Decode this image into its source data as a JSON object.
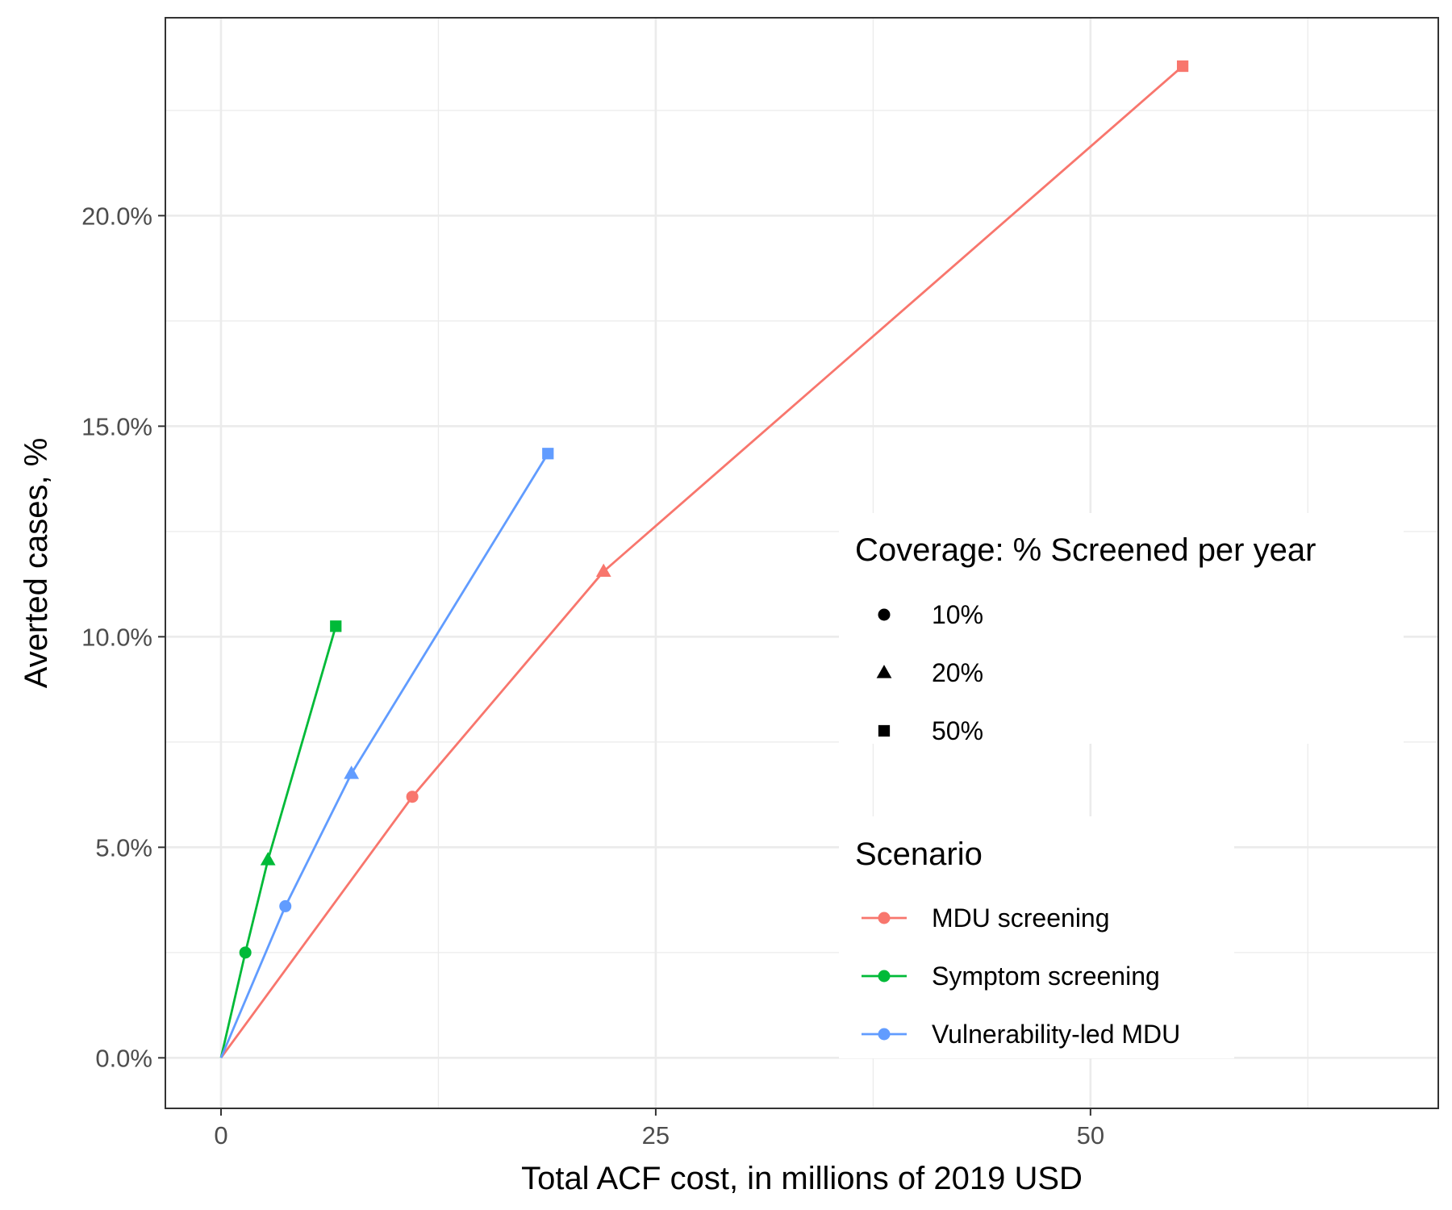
{
  "chart_data": {
    "type": "line",
    "title": "",
    "xlabel": "Total ACF cost, in millions of 2019 USD",
    "ylabel": "Averted cases, %",
    "xlim": [
      -3.2,
      70
    ],
    "ylim": [
      -1.2,
      24.7
    ],
    "x_ticks": [
      0,
      25,
      50
    ],
    "x_tick_labels": [
      "0",
      "25",
      "50"
    ],
    "x_minor_ticks": [
      12.5,
      37.5,
      62.5
    ],
    "y_ticks": [
      0,
      5,
      10,
      15,
      20
    ],
    "y_tick_labels": [
      "0.0%",
      "5.0%",
      "10.0%",
      "15.0%",
      "20.0%"
    ],
    "y_minor_ticks": [
      2.5,
      7.5,
      12.5,
      17.5,
      22.5
    ],
    "grid": true,
    "legend_position": "right-inside",
    "series": [
      {
        "name": "MDU screening",
        "color": "#F8766D",
        "points": [
          {
            "x": 0,
            "y": 0,
            "shape": "none"
          },
          {
            "x": 11,
            "y": 6.2,
            "shape": "circle"
          },
          {
            "x": 22,
            "y": 11.55,
            "shape": "triangle"
          },
          {
            "x": 55.3,
            "y": 23.55,
            "shape": "square"
          }
        ]
      },
      {
        "name": "Symptom screening",
        "color": "#00BA38",
        "points": [
          {
            "x": 0,
            "y": 0,
            "shape": "none"
          },
          {
            "x": 1.4,
            "y": 2.5,
            "shape": "circle"
          },
          {
            "x": 2.7,
            "y": 4.7,
            "shape": "triangle"
          },
          {
            "x": 6.6,
            "y": 10.25,
            "shape": "square"
          }
        ]
      },
      {
        "name": "Vulnerability-led MDU",
        "color": "#619CFF",
        "points": [
          {
            "x": 0,
            "y": 0,
            "shape": "none"
          },
          {
            "x": 3.7,
            "y": 3.6,
            "shape": "circle"
          },
          {
            "x": 7.5,
            "y": 6.75,
            "shape": "triangle"
          },
          {
            "x": 18.8,
            "y": 14.35,
            "shape": "square"
          }
        ]
      }
    ],
    "legends": {
      "shape": {
        "title": "Coverage: % Screened per year",
        "items": [
          {
            "label": "10%",
            "shape": "circle"
          },
          {
            "label": "20%",
            "shape": "triangle"
          },
          {
            "label": "50%",
            "shape": "square"
          }
        ]
      },
      "color": {
        "title": "Scenario",
        "items": [
          {
            "label": "MDU screening",
            "color": "#F8766D"
          },
          {
            "label": "Symptom screening",
            "color": "#00BA38"
          },
          {
            "label": "Vulnerability-led MDU",
            "color": "#619CFF"
          }
        ]
      }
    }
  }
}
